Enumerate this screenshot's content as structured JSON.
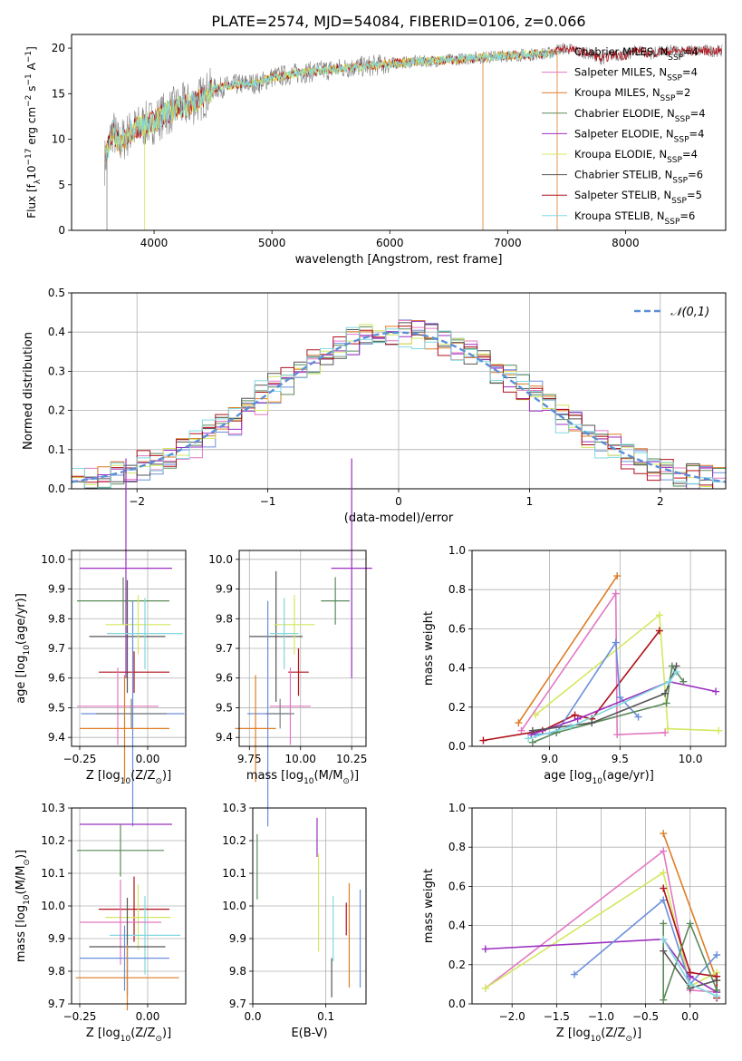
{
  "figure_title": "PLATE=2574, MJD=54084, FIBERID=0106, z=0.066",
  "models": [
    {
      "name": "Chabrier MILES, N",
      "sub": "SSP",
      "n": "=4",
      "color": "#e0e0e0"
    },
    {
      "name": "Salpeter MILES, N",
      "sub": "SSP",
      "n": "=4",
      "color": "#e377c2"
    },
    {
      "name": "Kroupa MILES, N",
      "sub": "SSP",
      "n": "=2",
      "color": "#dd7d25"
    },
    {
      "name": "Chabrier ELODIE, N",
      "sub": "SSP",
      "n": "=4",
      "color": "#5a8a5a"
    },
    {
      "name": "Salpeter ELODIE, N",
      "sub": "SSP",
      "n": "=4",
      "color": "#9b30c0"
    },
    {
      "name": "Kroupa ELODIE, N",
      "sub": "SSP",
      "n": "=4",
      "color": "#d4e860"
    },
    {
      "name": "Chabrier STELIB, N",
      "sub": "SSP",
      "n": "=6",
      "color": "#555555"
    },
    {
      "name": "Salpeter STELIB, N",
      "sub": "SSP",
      "n": "=5",
      "color": "#b0101a"
    },
    {
      "name": "Kroupa STELIB, N",
      "sub": "SSP",
      "n": "=6",
      "color": "#80d8e0"
    }
  ],
  "chart_data": [
    {
      "id": "spectrum",
      "type": "line",
      "xlabel": "wavelength [Angstrom, rest frame]",
      "ylabel": "Flux [f",
      "ylabel_sub": "λ",
      "ylabel_rest": "10",
      "ylabel_sup1": "−17",
      "ylabel_mid": " erg cm",
      "ylabel_sup2": "−2",
      "ylabel_mid2": " s",
      "ylabel_sup3": "−1",
      "ylabel_end": " A",
      "ylabel_sup4": "−1",
      "ylabel_close": "]",
      "xlim": [
        3300,
        8850
      ],
      "ylim": [
        0,
        21.5
      ],
      "xticks": [
        "4000",
        "5000",
        "6000",
        "7000",
        "8000"
      ],
      "yticks": [
        "0",
        "5",
        "10",
        "15",
        "20"
      ],
      "series": [
        {
          "x": [
            3580,
            3650,
            3700,
            3800,
            3900,
            4000,
            4100,
            4200,
            4300,
            4400,
            4500,
            4700,
            4900,
            5000,
            5200,
            5400,
            5600,
            5800,
            6000,
            6200,
            6400,
            6600,
            6800,
            7000,
            7200,
            7400
          ],
          "values": [
            7.5,
            11.0,
            9.5,
            10.8,
            11.5,
            12.0,
            12.8,
            13.5,
            13.8,
            14.5,
            15.5,
            16.0,
            16.2,
            16.8,
            17.2,
            17.5,
            17.8,
            18.0,
            18.3,
            18.5,
            18.6,
            18.8,
            19.0,
            19.2,
            19.3,
            19.5
          ]
        },
        {
          "x": [
            7400,
            7500,
            7600,
            7700,
            7800,
            7900,
            8000,
            8100,
            8200,
            8300,
            8400
          ],
          "values": [
            19.8,
            20.0,
            19.6,
            19.4,
            18.8,
            19.3,
            19.2,
            19.8,
            19.4,
            19.6,
            19.7
          ]
        }
      ]
    },
    {
      "id": "residuals",
      "type": "histogram",
      "xlabel": "(data-model)/error",
      "ylabel": "Normed distribution",
      "xlim": [
        -2.5,
        2.5
      ],
      "ylim": [
        0,
        0.5
      ],
      "xticks": [
        "−2",
        "−1",
        "0",
        "1",
        "2"
      ],
      "yticks": [
        "0.0",
        "0.1",
        "0.2",
        "0.3",
        "0.4",
        "0.5"
      ],
      "legend": "𝒩(0,1)",
      "normal": {
        "mean": 0,
        "sd": 1
      }
    },
    {
      "id": "age_vs_Z",
      "type": "errorbar",
      "xlabel": "Z [log",
      "xlabel_sub": "10",
      "xlabel_rest": "(Z/Z",
      "xlabel_sub2": "⊙",
      "xlabel_close": ")]",
      "ylabel": "age  [log",
      "ylabel_sub": "10",
      "ylabel_rest": "(age/yr)]",
      "xlim": [
        -0.28,
        0.14
      ],
      "ylim": [
        9.37,
        10.03
      ],
      "xticks": [
        "−0.25",
        "0.00"
      ],
      "yticks": [
        "9.4",
        "9.5",
        "9.6",
        "9.7",
        "9.8",
        "9.9",
        "10.0"
      ],
      "points": [
        {
          "x": -0.075,
          "y": 9.74,
          "xerr": 0.14,
          "yerr": 0.19,
          "c": 6
        },
        {
          "x": -0.09,
          "y": 9.86,
          "xerr": 0.17,
          "yerr": 0.08,
          "c": 3
        },
        {
          "x": -0.05,
          "y": 9.62,
          "xerr": 0.13,
          "yerr": 0.07,
          "c": 7
        },
        {
          "x": -0.08,
          "y": 9.97,
          "xerr": 0.17,
          "yerr": 0.37,
          "c": 4
        },
        {
          "x": -0.035,
          "y": 9.78,
          "xerr": 0.12,
          "yerr": 0.1,
          "c": 5
        },
        {
          "x": -0.055,
          "y": 9.48,
          "xerr": 0.19,
          "yerr": 0.38,
          "c": 0
        },
        {
          "x": -0.01,
          "y": 9.75,
          "xerr": 0.14,
          "yerr": 0.12,
          "c": 8
        },
        {
          "x": -0.11,
          "y": 9.505,
          "xerr": 0.15,
          "yerr": 0.13,
          "c": 1
        },
        {
          "x": -0.085,
          "y": 9.43,
          "xerr": 0.165,
          "yerr": 0.18,
          "c": 2
        },
        {
          "x": -0.06,
          "y": 9.48,
          "xerr": 0.13,
          "yerr": 0.05,
          "c": 9
        }
      ]
    },
    {
      "id": "age_vs_mass",
      "type": "errorbar",
      "xlabel": "mass [log",
      "xlabel_sub": "10",
      "xlabel_rest": "(M/M",
      "xlabel_sub2": "⊙",
      "xlabel_close": ")]",
      "ylabel": "",
      "xlim": [
        9.7,
        10.32
      ],
      "ylim": [
        9.37,
        10.03
      ],
      "xticks": [
        "9.75",
        "10.00",
        "10.25"
      ],
      "yticks": [
        "9.4",
        "9.5",
        "9.6",
        "9.7",
        "9.8",
        "9.9",
        "10.0"
      ],
      "points": [
        {
          "x": 9.88,
          "y": 9.74,
          "xerr": 0.13,
          "yerr": 0.22,
          "c": 6
        },
        {
          "x": 10.17,
          "y": 9.86,
          "xerr": 0.07,
          "yerr": 0.08,
          "c": 3
        },
        {
          "x": 9.99,
          "y": 9.62,
          "xerr": 0.05,
          "yerr": 0.08,
          "c": 7
        },
        {
          "x": 10.25,
          "y": 9.97,
          "xerr": 0.1,
          "yerr": 0.37,
          "c": 4
        },
        {
          "x": 9.97,
          "y": 9.78,
          "xerr": 0.1,
          "yerr": 0.1,
          "c": 5
        },
        {
          "x": 9.84,
          "y": 9.48,
          "xerr": 0.1,
          "yerr": 0.38,
          "c": 0
        },
        {
          "x": 9.92,
          "y": 9.75,
          "xerr": 0.07,
          "yerr": 0.12,
          "c": 8
        },
        {
          "x": 9.95,
          "y": 9.505,
          "xerr": 0.1,
          "yerr": 0.13,
          "c": 1
        },
        {
          "x": 9.78,
          "y": 9.43,
          "xerr": 0.1,
          "yerr": 0.18,
          "c": 2
        },
        {
          "x": 9.9,
          "y": 9.48,
          "xerr": 0.07,
          "yerr": 0.05,
          "c": 9
        }
      ]
    },
    {
      "id": "weight_vs_age",
      "type": "line",
      "xlabel": "age  [log",
      "xlabel_sub": "10",
      "xlabel_rest": "(age/yr)]",
      "ylabel": "mass weight",
      "xlim": [
        8.45,
        10.25
      ],
      "ylim": [
        0,
        1.0
      ],
      "xticks": [
        "9.0",
        "9.5",
        "10.0"
      ],
      "yticks": [
        "0.0",
        "0.2",
        "0.4",
        "0.6",
        "0.8",
        "1.0"
      ],
      "series": [
        {
          "c": 2,
          "x": [
            8.78,
            9.48
          ],
          "values": [
            0.12,
            0.87
          ]
        },
        {
          "c": 1,
          "x": [
            8.8,
            9.47,
            9.48,
            9.82
          ],
          "values": [
            0.08,
            0.78,
            0.06,
            0.07
          ]
        },
        {
          "c": 5,
          "x": [
            8.9,
            9.78,
            9.84,
            10.2
          ],
          "values": [
            0.16,
            0.67,
            0.09,
            0.08
          ]
        },
        {
          "c": 7,
          "x": [
            8.53,
            8.95,
            9.18,
            9.3,
            9.78
          ],
          "values": [
            0.03,
            0.08,
            0.16,
            0.14,
            0.59
          ]
        },
        {
          "c": 0,
          "x": [
            8.9,
            9.05,
            9.47,
            9.5,
            9.63
          ],
          "values": [
            0.06,
            0.07,
            0.53,
            0.25,
            0.15
          ]
        },
        {
          "c": 4,
          "x": [
            8.87,
            9.2,
            9.85,
            10.18
          ],
          "values": [
            0.06,
            0.14,
            0.33,
            0.28
          ]
        },
        {
          "c": 3,
          "x": [
            8.88,
            9.05,
            9.83,
            9.87,
            9.95
          ],
          "values": [
            0.02,
            0.07,
            0.22,
            0.41,
            0.33
          ]
        },
        {
          "c": 6,
          "x": [
            8.88,
            9.3,
            9.82,
            9.9
          ],
          "values": [
            0.08,
            0.12,
            0.27,
            0.41
          ]
        },
        {
          "c": 8,
          "x": [
            8.85,
            9.15,
            9.85,
            9.9
          ],
          "values": [
            0.04,
            0.1,
            0.33,
            0.38
          ]
        }
      ]
    },
    {
      "id": "mass_vs_Z",
      "type": "errorbar",
      "xlabel": "Z [log",
      "xlabel_sub": "10",
      "xlabel_rest": "(Z/Z",
      "xlabel_sub2": "⊙",
      "xlabel_close": ")]",
      "ylabel": "mass [log",
      "ylabel_sub": "10",
      "ylabel_rest": "(M/M",
      "ylabel_sub2": "⊙",
      "ylabel_close": ")]",
      "xlim": [
        -0.28,
        0.14
      ],
      "ylim": [
        9.7,
        10.3
      ],
      "xticks": [
        "−0.25",
        "0.00"
      ],
      "yticks": [
        "9.7",
        "9.8",
        "9.9",
        "10.0",
        "10.1",
        "10.2",
        "10.3"
      ],
      "points": [
        {
          "x": -0.08,
          "y": 10.25,
          "xerr": 0.17,
          "yerr": 0.0,
          "c": 4
        },
        {
          "x": -0.1,
          "y": 10.17,
          "xerr": 0.16,
          "yerr": 0.08,
          "c": 3
        },
        {
          "x": -0.05,
          "y": 9.99,
          "xerr": 0.13,
          "yerr": 0.1,
          "c": 7
        },
        {
          "x": -0.035,
          "y": 9.965,
          "xerr": 0.12,
          "yerr": 0.1,
          "c": 5
        },
        {
          "x": -0.01,
          "y": 9.91,
          "xerr": 0.13,
          "yerr": 0.12,
          "c": 8
        },
        {
          "x": -0.1,
          "y": 9.95,
          "xerr": 0.15,
          "yerr": 0.13,
          "c": 1
        },
        {
          "x": -0.075,
          "y": 9.875,
          "xerr": 0.14,
          "yerr": 0.15,
          "c": 6
        },
        {
          "x": -0.085,
          "y": 9.84,
          "xerr": 0.165,
          "yerr": 0.1,
          "c": 0
        },
        {
          "x": -0.075,
          "y": 9.78,
          "xerr": 0.19,
          "yerr": 0.1,
          "c": 2
        }
      ]
    },
    {
      "id": "mass_vs_EBV",
      "type": "errorbar",
      "xlabel": "E(B-V)",
      "ylabel": "",
      "xlim": [
        0.0,
        0.155
      ],
      "ylim": [
        9.7,
        10.3
      ],
      "xticks": [
        "0.0",
        "0.1"
      ],
      "yticks": [
        "9.7",
        "9.8",
        "9.9",
        "10.0",
        "10.1",
        "10.2",
        "10.3"
      ],
      "points": [
        {
          "x": 0.006,
          "y": 10.12,
          "xerr": 0,
          "yerr": 0.1,
          "c": 3
        },
        {
          "x": 0.088,
          "y": 10.21,
          "xerr": 0,
          "yerr": 0.06,
          "c": 4
        },
        {
          "x": 0.09,
          "y": 10.01,
          "xerr": 0,
          "yerr": 0.15,
          "c": 5
        },
        {
          "x": 0.108,
          "y": 9.78,
          "xerr": 0,
          "yerr": 0.06,
          "c": 6
        },
        {
          "x": 0.11,
          "y": 9.93,
          "xerr": 0,
          "yerr": 0.1,
          "c": 8
        },
        {
          "x": 0.128,
          "y": 9.96,
          "xerr": 0,
          "yerr": 0.05,
          "c": 7
        },
        {
          "x": 0.132,
          "y": 9.91,
          "xerr": 0,
          "yerr": 0.16,
          "c": 2
        },
        {
          "x": 0.147,
          "y": 9.9,
          "xerr": 0,
          "yerr": 0.15,
          "c": 0
        }
      ]
    },
    {
      "id": "weight_vs_Z",
      "type": "line",
      "xlabel": "Z [log",
      "xlabel_sub": "10",
      "xlabel_rest": "(Z/Z",
      "xlabel_sub2": "⊙",
      "xlabel_close": ")]",
      "ylabel": "mass weight",
      "xlim": [
        -2.45,
        0.4
      ],
      "ylim": [
        0,
        1.0
      ],
      "xticks": [
        "−2.0",
        "−1.5",
        "−1.0",
        "−0.5",
        "0.0"
      ],
      "yticks": [
        "0.0",
        "0.2",
        "0.4",
        "0.6",
        "0.8",
        "1.0"
      ],
      "series": [
        {
          "c": 2,
          "x": [
            -0.3,
            0.3
          ],
          "values": [
            0.87,
            0.12
          ]
        },
        {
          "c": 1,
          "x": [
            -2.3,
            -0.3,
            0.0,
            0.3
          ],
          "values": [
            0.08,
            0.78,
            0.07,
            0.06
          ]
        },
        {
          "c": 5,
          "x": [
            -2.3,
            -0.3,
            0.0,
            0.3
          ],
          "values": [
            0.08,
            0.67,
            0.09,
            0.16
          ]
        },
        {
          "c": 4,
          "x": [
            -2.3,
            -0.3,
            0.0,
            0.3
          ],
          "values": [
            0.28,
            0.33,
            0.14,
            0.06
          ]
        },
        {
          "c": 0,
          "x": [
            -1.3,
            -0.3,
            0.0,
            0.3
          ],
          "values": [
            0.15,
            0.53,
            0.1,
            0.25
          ]
        },
        {
          "c": 7,
          "x": [
            -0.3,
            0.0,
            0.3,
            0.3
          ],
          "values": [
            0.59,
            0.16,
            0.14,
            0.03
          ]
        },
        {
          "c": 3,
          "x": [
            -0.3,
            -0.3,
            0.0,
            0.3
          ],
          "values": [
            0.41,
            0.02,
            0.41,
            0.07
          ]
        },
        {
          "c": 6,
          "x": [
            -0.3,
            0.0,
            0.3
          ],
          "values": [
            0.27,
            0.08,
            0.12
          ]
        },
        {
          "c": 8,
          "x": [
            -0.3,
            0.0,
            0.3
          ],
          "values": [
            0.33,
            0.1,
            0.04
          ]
        }
      ]
    }
  ]
}
